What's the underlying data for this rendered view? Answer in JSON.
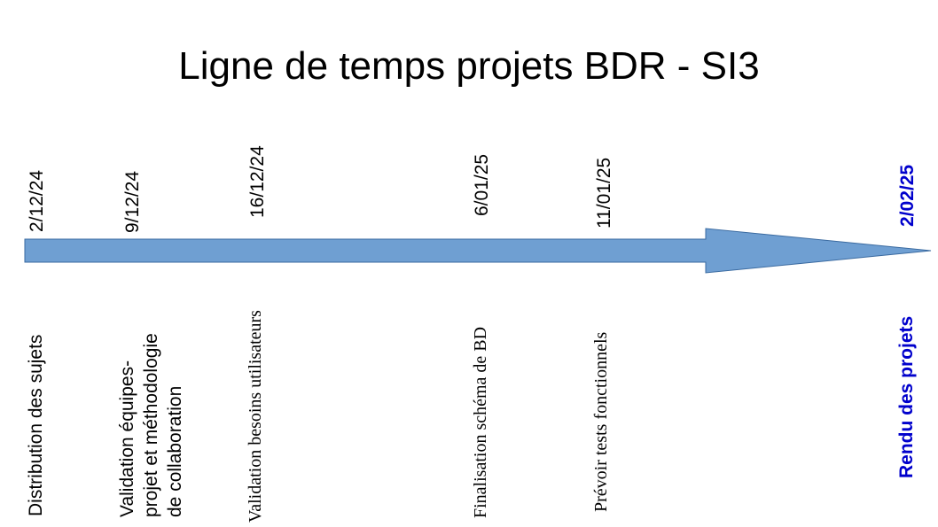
{
  "title": "Ligne de temps projets BDR - SI3",
  "colors": {
    "arrow_fill": "#6f9fd2",
    "arrow_stroke": "#3a6aa0",
    "highlight": "#0000cc",
    "text": "#000000"
  },
  "milestones": [
    {
      "date": "2/12/24",
      "label": "Distribution des sujets"
    },
    {
      "date": "9/12/24",
      "label": "Validation équipes-\nprojet et méthodologie\nde collaboration"
    },
    {
      "date": "16/12/24",
      "label": "Validation besoins utilisateurs"
    },
    {
      "date": "6/01/25",
      "label": "Finalisation schéma de BD"
    },
    {
      "date": "11/01/25",
      "label": "Prévoir tests fonctionnels"
    },
    {
      "date": "2/02/25",
      "label": "Rendu des projets"
    }
  ]
}
